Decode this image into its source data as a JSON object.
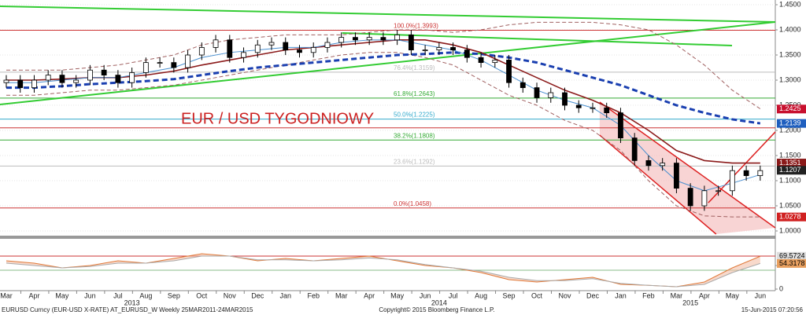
{
  "chart_data": {
    "type": "candlestick",
    "title": "EUR / USD TYGODNIOWY",
    "x": [
      0,
      0.5,
      1,
      1.5,
      2,
      2.5,
      3,
      3.5,
      4,
      4.5,
      5,
      5.5,
      6,
      6.5,
      7,
      7.5,
      8,
      8.5,
      9,
      9.5,
      10,
      10.5,
      11,
      11.5,
      12,
      12.5,
      13,
      13.5,
      14,
      14.5,
      15,
      15.5,
      16,
      16.5,
      17,
      17.5,
      18,
      18.5,
      19,
      19.5,
      20,
      20.5,
      21,
      21.5,
      22,
      22.5,
      23,
      23.5,
      24,
      24.5,
      25,
      25.5,
      26,
      26.5,
      27
    ],
    "open": [
      1.295,
      1.3,
      1.285,
      1.3,
      1.31,
      1.295,
      1.3,
      1.32,
      1.31,
      1.295,
      1.315,
      1.335,
      1.335,
      1.325,
      1.35,
      1.365,
      1.38,
      1.345,
      1.355,
      1.37,
      1.375,
      1.36,
      1.355,
      1.365,
      1.375,
      1.385,
      1.38,
      1.385,
      1.38,
      1.39,
      1.36,
      1.36,
      1.365,
      1.36,
      1.345,
      1.335,
      1.34,
      1.295,
      1.285,
      1.265,
      1.275,
      1.25,
      1.245,
      1.245,
      1.235,
      1.185,
      1.14,
      1.13,
      1.135,
      1.085,
      1.05,
      1.08,
      1.08,
      1.12,
      1.11
    ],
    "high": [
      1.31,
      1.31,
      1.31,
      1.32,
      1.32,
      1.31,
      1.33,
      1.33,
      1.32,
      1.325,
      1.345,
      1.345,
      1.345,
      1.36,
      1.375,
      1.39,
      1.39,
      1.365,
      1.38,
      1.385,
      1.385,
      1.37,
      1.375,
      1.385,
      1.395,
      1.395,
      1.395,
      1.395,
      1.4,
      1.4,
      1.37,
      1.375,
      1.375,
      1.37,
      1.355,
      1.35,
      1.35,
      1.305,
      1.295,
      1.285,
      1.285,
      1.26,
      1.255,
      1.255,
      1.245,
      1.195,
      1.15,
      1.145,
      1.145,
      1.095,
      1.09,
      1.09,
      1.13,
      1.13,
      1.13
    ],
    "low": [
      1.285,
      1.275,
      1.275,
      1.29,
      1.285,
      1.285,
      1.29,
      1.3,
      1.285,
      1.285,
      1.305,
      1.325,
      1.315,
      1.315,
      1.34,
      1.355,
      1.335,
      1.335,
      1.345,
      1.36,
      1.35,
      1.345,
      1.345,
      1.355,
      1.365,
      1.37,
      1.37,
      1.37,
      1.37,
      1.35,
      1.35,
      1.35,
      1.35,
      1.335,
      1.325,
      1.325,
      1.285,
      1.275,
      1.255,
      1.255,
      1.24,
      1.235,
      1.235,
      1.225,
      1.175,
      1.13,
      1.12,
      1.12,
      1.075,
      1.04,
      1.04,
      1.07,
      1.07,
      1.1,
      1.1
    ],
    "close": [
      1.3,
      1.285,
      1.3,
      1.31,
      1.295,
      1.3,
      1.32,
      1.31,
      1.295,
      1.315,
      1.335,
      1.335,
      1.325,
      1.35,
      1.365,
      1.38,
      1.345,
      1.355,
      1.37,
      1.375,
      1.36,
      1.355,
      1.365,
      1.375,
      1.385,
      1.38,
      1.385,
      1.38,
      1.39,
      1.36,
      1.36,
      1.365,
      1.36,
      1.345,
      1.335,
      1.34,
      1.295,
      1.285,
      1.265,
      1.275,
      1.25,
      1.245,
      1.245,
      1.235,
      1.185,
      1.14,
      1.13,
      1.135,
      1.085,
      1.05,
      1.08,
      1.08,
      1.12,
      1.11,
      1.12
    ],
    "up_color": "#ffffff",
    "down_color": "#000000",
    "xlim": [
      -0.225,
      27.54
    ],
    "ylim": [
      0.99375,
      1.4594
    ],
    "yticks": [
      {
        "value": 1.45,
        "label": "1.4500"
      },
      {
        "value": 1.4,
        "label": "1.4000"
      },
      {
        "value": 1.35,
        "label": "1.3500"
      },
      {
        "value": 1.3,
        "label": "1.3000"
      },
      {
        "value": 1.25,
        "label": "1.2500"
      },
      {
        "value": 1.2,
        "label": "1.2000"
      },
      {
        "value": 1.15,
        "label": "1.1500"
      },
      {
        "value": 1.1,
        "label": "1.1000"
      },
      {
        "value": 1.05,
        "label": "1.0500"
      },
      {
        "value": 1.0,
        "label": "1.0000"
      }
    ],
    "grid": true,
    "xticks": [
      {
        "value": 0,
        "label": "Mar"
      },
      {
        "value": 1,
        "label": "Apr"
      },
      {
        "value": 2,
        "label": "May"
      },
      {
        "value": 3,
        "label": "Jun"
      },
      {
        "value": 4,
        "label": "Jul"
      },
      {
        "value": 5,
        "label": "Aug"
      },
      {
        "value": 6,
        "label": "Sep"
      },
      {
        "value": 7,
        "label": "Oct"
      },
      {
        "value": 8,
        "label": "Nov"
      },
      {
        "value": 9,
        "label": "Dec"
      },
      {
        "value": 10,
        "label": "Jan"
      },
      {
        "value": 11,
        "label": "Feb"
      },
      {
        "value": 12,
        "label": "Mar"
      },
      {
        "value": 13,
        "label": "Apr"
      },
      {
        "value": 14,
        "label": "May"
      },
      {
        "value": 15,
        "label": "Jun"
      },
      {
        "value": 16,
        "label": "Jul"
      },
      {
        "value": 17,
        "label": "Aug"
      },
      {
        "value": 18,
        "label": "Sep"
      },
      {
        "value": 19,
        "label": "Oct"
      },
      {
        "value": 20,
        "label": "Nov"
      },
      {
        "value": 21,
        "label": "Dec"
      },
      {
        "value": 22,
        "label": "Jan"
      },
      {
        "value": 23,
        "label": "Feb"
      },
      {
        "value": 24,
        "label": "Mar"
      },
      {
        "value": 25,
        "label": "Apr"
      },
      {
        "value": 26,
        "label": "May"
      },
      {
        "value": 27,
        "label": "Jun"
      }
    ],
    "year_ticks": [
      {
        "value": 4.5,
        "label": "2013"
      },
      {
        "value": 15.5,
        "label": "2014"
      },
      {
        "value": 24.5,
        "label": "2015"
      }
    ],
    "overlay_x": [
      0,
      1,
      2,
      3,
      4,
      5,
      6,
      7,
      8,
      9,
      10,
      11,
      12,
      13,
      14,
      15,
      16,
      17,
      18,
      19,
      20,
      21,
      22,
      23,
      24,
      25,
      26,
      27
    ],
    "overlays": [
      {
        "color": "#a06060",
        "dash": true,
        "width": 1,
        "values": [
          1.32,
          1.32,
          1.32,
          1.325,
          1.33,
          1.34,
          1.35,
          1.37,
          1.38,
          1.385,
          1.39,
          1.39,
          1.39,
          1.395,
          1.4,
          1.4,
          1.395,
          1.4,
          1.41,
          1.415,
          1.415,
          1.415,
          1.41,
          1.4,
          1.37,
          1.33,
          1.28,
          1.243
        ]
      },
      {
        "color": "#a06060",
        "dash": true,
        "width": 1,
        "values": [
          1.27,
          1.27,
          1.275,
          1.28,
          1.28,
          1.285,
          1.29,
          1.3,
          1.31,
          1.32,
          1.33,
          1.34,
          1.35,
          1.355,
          1.355,
          1.345,
          1.33,
          1.3,
          1.27,
          1.25,
          1.22,
          1.2,
          1.16,
          1.1,
          1.05,
          1.03,
          1.028,
          1.028
        ]
      },
      {
        "color": "#1a3fb0",
        "dash": true,
        "width": 3,
        "values": [
          1.285,
          1.285,
          1.288,
          1.292,
          1.295,
          1.298,
          1.302,
          1.31,
          1.318,
          1.325,
          1.33,
          1.335,
          1.34,
          1.345,
          1.35,
          1.352,
          1.355,
          1.352,
          1.345,
          1.335,
          1.32,
          1.305,
          1.29,
          1.27,
          1.25,
          1.235,
          1.222,
          1.214
        ]
      },
      {
        "color": "#8b1a1a",
        "dash": false,
        "width": 1.6,
        "values": [
          1.3,
          1.3,
          1.302,
          1.305,
          1.305,
          1.31,
          1.318,
          1.33,
          1.34,
          1.35,
          1.36,
          1.365,
          1.37,
          1.375,
          1.38,
          1.38,
          1.37,
          1.355,
          1.33,
          1.305,
          1.28,
          1.26,
          1.235,
          1.2,
          1.16,
          1.14,
          1.135,
          1.135
        ]
      },
      {
        "color": "#4a90d0",
        "dash": false,
        "width": 1,
        "values": [
          1.295,
          1.295,
          1.3,
          1.305,
          1.305,
          1.315,
          1.325,
          1.345,
          1.355,
          1.36,
          1.365,
          1.365,
          1.375,
          1.38,
          1.38,
          1.37,
          1.36,
          1.34,
          1.31,
          1.28,
          1.26,
          1.245,
          1.21,
          1.15,
          1.1,
          1.08,
          1.095,
          1.112
        ]
      }
    ],
    "channel": {
      "color": "#f4b8b8",
      "upper": {
        "x": [
          21.25,
          27.54
        ],
        "values": [
          1.2563,
          1.0063
        ]
      },
      "lower": {
        "x": [
          21.25,
          25.42
        ],
        "values": [
          1.1906,
          0.99375
        ]
      }
    },
    "trendlines": [
      {
        "color": "#33cc33",
        "x": [
          -0.225,
          27.54
        ],
        "values": [
          1.4469,
          1.4156
        ]
      },
      {
        "color": "#33cc33",
        "x": [
          -0.225,
          27.54
        ],
        "values": [
          1.2516,
          1.4156
        ]
      },
      {
        "color": "#33cc33",
        "x": [
          12.03,
          25.99
        ],
        "values": [
          1.3938,
          1.3688
        ]
      },
      {
        "color": "#dd2222",
        "x": [
          25.14,
          27.54
        ],
        "values": [
          1.056,
          1.197
        ]
      },
      {
        "color": "#dd2222",
        "x": [
          21.25,
          27.54
        ],
        "values": [
          1.2563,
          1.0063
        ]
      },
      {
        "color": "#dd2222",
        "x": [
          21.25,
          25.42
        ],
        "values": [
          1.1906,
          0.99375
        ]
      }
    ],
    "levels": [
      {
        "label": "100.0%(1.3993)",
        "value": 1.3993,
        "color": "#cc3333"
      },
      {
        "label": "76.4%(1.3159)",
        "value": 1.3159,
        "color": "#bbbbbb"
      },
      {
        "label": "61.8%(1.2643)",
        "value": 1.2643,
        "color": "#33aa33"
      },
      {
        "label": "50.0%(1.2225)",
        "value": 1.2225,
        "color": "#33aacc"
      },
      {
        "label": "38.2%(1.1808)",
        "value": 1.1808,
        "color": "#33aa33"
      },
      {
        "label": "23.6%(1.1292)",
        "value": 1.1292,
        "color": "#bbbbbb"
      },
      {
        "label": "0.0%(1.0458)",
        "value": 1.0458,
        "color": "#cc3333"
      }
    ],
    "hlines": [
      {
        "value": 1.205,
        "color": "#cc3333"
      }
    ],
    "price_tags": [
      {
        "label": "1.2425",
        "value": 1.2425,
        "color": "#c8102e"
      },
      {
        "label": "1.2139",
        "value": 1.2139,
        "color": "#1f5fbf"
      },
      {
        "label": "1.1351",
        "value": 1.1351,
        "color": "#8b1a1a"
      },
      {
        "label": "1.1207",
        "value": 1.1207,
        "color": "#222222"
      },
      {
        "label": "1.0278",
        "value": 1.0278,
        "color": "#d02020"
      }
    ],
    "oscillator": {
      "ylim": [
        0,
        100
      ],
      "yticks": [
        50,
        0
      ],
      "levels": [
        {
          "value": 70,
          "color": "#cc3333"
        },
        {
          "value": 40,
          "color": "#88bb88"
        }
      ],
      "series": [
        {
          "color": "#e07a3a",
          "values": [
            60,
            55,
            45,
            50,
            60,
            55,
            65,
            75,
            70,
            60,
            65,
            60,
            65,
            70,
            60,
            50,
            45,
            35,
            20,
            15,
            20,
            25,
            10,
            8,
            5,
            15,
            45,
            69.5724
          ]
        },
        {
          "color": "#aaaaaa",
          "values": [
            55,
            50,
            45,
            48,
            55,
            55,
            60,
            70,
            70,
            62,
            62,
            60,
            62,
            66,
            62,
            52,
            45,
            38,
            25,
            18,
            18,
            22,
            12,
            8,
            5,
            10,
            35,
            54.3178
          ]
        }
      ],
      "tags": [
        {
          "label": "69.5724",
          "value": 69.5724,
          "color": "#dddddd",
          "text_color": "#000000"
        },
        {
          "label": "54.3178",
          "value": 54.3178,
          "color": "#e8a060",
          "text_color": "#000000"
        }
      ]
    },
    "footer": {
      "left": "EURUSD Curncy (EUR-USD X-RATE) AT_EURUSD_W  Weekly 25MAR2011-24MAR2015",
      "center": "Copyright© 2015 Bloomberg Finance L.P.",
      "right": "15-Jun-2015 07:20:56"
    }
  }
}
